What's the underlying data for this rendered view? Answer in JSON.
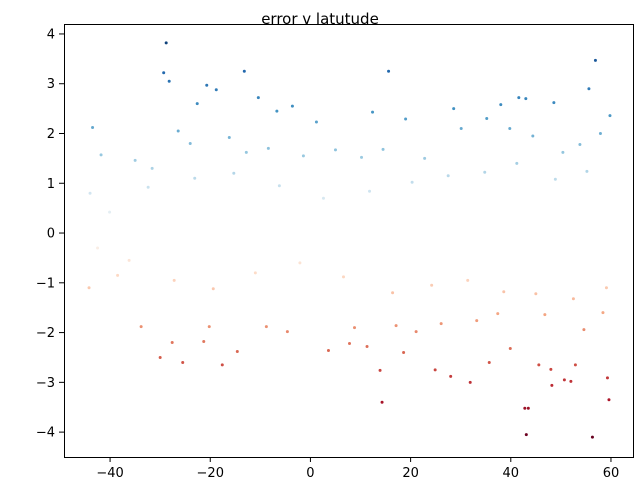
{
  "chart_data": {
    "type": "scatter",
    "title": "error v latutude",
    "xlabel": "",
    "ylabel": "",
    "xlim": [
      -49.2,
      64.4
    ],
    "ylim": [
      -4.5,
      4.2
    ],
    "x_ticks": [
      -40,
      -20,
      0,
      20,
      40,
      60
    ],
    "y_ticks": [
      -4,
      -3,
      -2,
      -1,
      0,
      1,
      2,
      3,
      4
    ],
    "x_tick_labels": [
      "−40",
      "−20",
      "0",
      "20",
      "40",
      "60"
    ],
    "y_tick_labels": [
      "−4",
      "−3",
      "−2",
      "−1",
      "0",
      "1",
      "2",
      "3",
      "4"
    ],
    "grid": false,
    "legend": "none",
    "colormap": "RdBu",
    "color_by": "y",
    "color_range": [
      -4.1,
      4.1
    ],
    "marker_size": 1.5,
    "series": [
      {
        "x_range": [
          -44.5,
          60
        ],
        "y_range": [
          -4.1,
          3.8
        ],
        "points": [
          [
            -28.8,
            3.82
          ],
          [
            -29.3,
            3.22
          ],
          [
            -28.2,
            3.05
          ],
          [
            -20.7,
            2.97
          ],
          [
            -18.8,
            2.88
          ],
          [
            -13.2,
            3.25
          ],
          [
            15.6,
            3.25
          ],
          [
            56.9,
            3.47
          ],
          [
            -43.5,
            2.12
          ],
          [
            -22.6,
            2.6
          ],
          [
            -10.4,
            2.72
          ],
          [
            -3.6,
            2.55
          ],
          [
            -6.7,
            2.45
          ],
          [
            1.2,
            2.23
          ],
          [
            12.4,
            2.43
          ],
          [
            19.0,
            2.29
          ],
          [
            28.6,
            2.5
          ],
          [
            38.0,
            2.58
          ],
          [
            41.6,
            2.72
          ],
          [
            43.0,
            2.7
          ],
          [
            48.6,
            2.62
          ],
          [
            55.6,
            2.9
          ],
          [
            59.8,
            2.36
          ],
          [
            -41.8,
            1.57
          ],
          [
            -35.0,
            1.46
          ],
          [
            -31.6,
            1.3
          ],
          [
            -26.4,
            2.05
          ],
          [
            -24.0,
            1.8
          ],
          [
            -16.2,
            1.92
          ],
          [
            -12.8,
            1.62
          ],
          [
            -8.4,
            1.7
          ],
          [
            -1.4,
            1.55
          ],
          [
            5.0,
            1.67
          ],
          [
            10.2,
            1.52
          ],
          [
            14.5,
            1.68
          ],
          [
            22.8,
            1.5
          ],
          [
            30.1,
            2.1
          ],
          [
            35.2,
            2.3
          ],
          [
            39.8,
            2.1
          ],
          [
            44.4,
            1.95
          ],
          [
            50.4,
            1.62
          ],
          [
            53.8,
            1.78
          ],
          [
            57.9,
            2.0
          ],
          [
            -30.0,
            -2.5
          ],
          [
            -27.6,
            -2.2
          ],
          [
            -25.5,
            -2.6
          ],
          [
            -21.3,
            -2.18
          ],
          [
            -17.6,
            -2.65
          ],
          [
            -14.6,
            -2.38
          ],
          [
            -8.8,
            -1.88
          ],
          [
            3.6,
            -2.36
          ],
          [
            7.8,
            -2.22
          ],
          [
            11.3,
            -2.28
          ],
          [
            13.9,
            -2.76
          ],
          [
            14.3,
            -3.4
          ],
          [
            18.6,
            -2.4
          ],
          [
            21.1,
            -1.98
          ],
          [
            24.9,
            -2.75
          ],
          [
            28.0,
            -2.88
          ],
          [
            31.9,
            -3.0
          ],
          [
            35.7,
            -2.6
          ],
          [
            39.9,
            -2.32
          ],
          [
            42.8,
            -3.52
          ],
          [
            43.5,
            -3.52
          ],
          [
            43.1,
            -4.05
          ],
          [
            45.6,
            -2.65
          ],
          [
            48.0,
            -2.74
          ],
          [
            48.2,
            -3.06
          ],
          [
            50.7,
            -2.95
          ],
          [
            52.0,
            -2.98
          ],
          [
            52.9,
            -2.65
          ],
          [
            56.3,
            -4.1
          ],
          [
            59.3,
            -2.91
          ],
          [
            59.6,
            -3.35
          ],
          [
            -33.8,
            -1.88
          ],
          [
            -44.2,
            -1.1
          ],
          [
            -38.5,
            -0.85
          ],
          [
            -20.2,
            -1.88
          ],
          [
            -4.6,
            -1.98
          ],
          [
            8.8,
            -1.9
          ],
          [
            17.1,
            -1.86
          ],
          [
            26.1,
            -1.82
          ],
          [
            33.2,
            -1.76
          ],
          [
            37.4,
            -1.62
          ],
          [
            46.8,
            -1.64
          ],
          [
            54.6,
            -1.94
          ],
          [
            58.4,
            -1.6
          ],
          [
            -44.0,
            0.8
          ],
          [
            -42.5,
            -0.3
          ],
          [
            -40.1,
            0.42
          ],
          [
            -36.2,
            -0.55
          ],
          [
            -32.4,
            0.92
          ],
          [
            -27.2,
            -0.95
          ],
          [
            -23.1,
            1.1
          ],
          [
            -19.4,
            -1.12
          ],
          [
            -15.3,
            1.2
          ],
          [
            -11.0,
            -0.8
          ],
          [
            -6.2,
            0.95
          ],
          [
            -2.1,
            -0.6
          ],
          [
            2.6,
            0.7
          ],
          [
            6.6,
            -0.88
          ],
          [
            11.8,
            0.84
          ],
          [
            16.4,
            -1.2
          ],
          [
            20.3,
            1.02
          ],
          [
            24.2,
            -1.05
          ],
          [
            27.5,
            1.15
          ],
          [
            31.4,
            -0.95
          ],
          [
            34.8,
            1.22
          ],
          [
            38.6,
            -1.18
          ],
          [
            41.2,
            1.4
          ],
          [
            45.0,
            -1.22
          ],
          [
            48.9,
            1.08
          ],
          [
            52.5,
            -1.32
          ],
          [
            55.2,
            1.24
          ],
          [
            59.1,
            -1.1
          ]
        ]
      }
    ]
  }
}
